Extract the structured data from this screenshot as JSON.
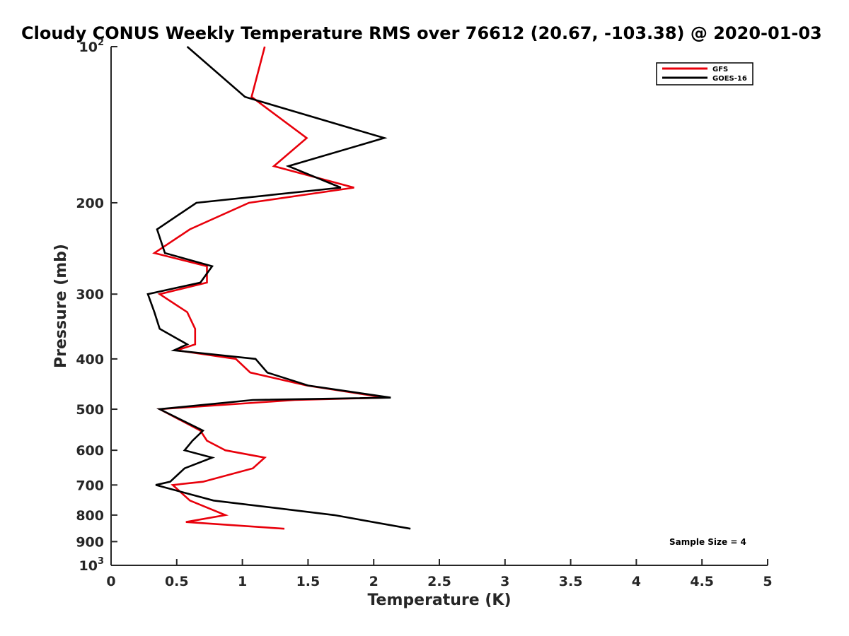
{
  "chart_data": {
    "type": "line",
    "title": "Cloudy CONUS Weekly Temperature RMS over 76612 (20.67, -103.38) @ 2020-01-03",
    "xlabel": "Temperature (K)",
    "ylabel": "Pressure (mb)",
    "xlim": [
      0,
      5
    ],
    "ylim": [
      100,
      1000
    ],
    "yscale": "log",
    "y_reversed": true,
    "x_ticks": [
      0,
      0.5,
      1,
      1.5,
      2,
      2.5,
      3,
      3.5,
      4,
      4.5,
      5
    ],
    "x_tick_labels": [
      "0",
      "0.5",
      "1",
      "1.5",
      "2",
      "2.5",
      "3",
      "3.5",
      "4",
      "4.5",
      "5"
    ],
    "y_ticks": [
      100,
      200,
      300,
      400,
      500,
      600,
      700,
      800,
      900,
      1000
    ],
    "y_tick_labels": [
      {
        "base": "10",
        "exp": "2"
      },
      {
        "base": "200",
        "exp": ""
      },
      {
        "base": "300",
        "exp": ""
      },
      {
        "base": "400",
        "exp": ""
      },
      {
        "base": "500",
        "exp": ""
      },
      {
        "base": "600",
        "exp": ""
      },
      {
        "base": "700",
        "exp": ""
      },
      {
        "base": "800",
        "exp": ""
      },
      {
        "base": "900",
        "exp": ""
      },
      {
        "base": "10",
        "exp": "3"
      }
    ],
    "legend_position": "top-right",
    "annotation": "Sample Size = 4",
    "series": [
      {
        "name": "GFS",
        "color": "#e8000b",
        "points": [
          [
            1.17,
            100
          ],
          [
            1.07,
            125
          ],
          [
            1.49,
            150
          ],
          [
            1.24,
            170
          ],
          [
            1.85,
            187
          ],
          [
            1.05,
            200
          ],
          [
            0.6,
            225
          ],
          [
            0.33,
            250
          ],
          [
            0.73,
            265
          ],
          [
            0.73,
            285
          ],
          [
            0.37,
            300
          ],
          [
            0.58,
            325
          ],
          [
            0.64,
            350
          ],
          [
            0.64,
            375
          ],
          [
            0.5,
            385
          ],
          [
            0.95,
            400
          ],
          [
            1.06,
            425
          ],
          [
            1.49,
            450
          ],
          [
            2.09,
            475
          ],
          [
            1.4,
            480
          ],
          [
            0.37,
            500
          ],
          [
            0.68,
            550
          ],
          [
            0.73,
            575
          ],
          [
            0.87,
            600
          ],
          [
            1.17,
            620
          ],
          [
            1.08,
            650
          ],
          [
            0.7,
            690
          ],
          [
            0.47,
            700
          ],
          [
            0.6,
            750
          ],
          [
            0.87,
            800
          ],
          [
            0.57,
            825
          ],
          [
            1.32,
            850
          ]
        ]
      },
      {
        "name": "GOES-16",
        "color": "#000000",
        "points": [
          [
            0.58,
            100
          ],
          [
            1.02,
            125
          ],
          [
            2.08,
            150
          ],
          [
            1.35,
            170
          ],
          [
            1.75,
            187
          ],
          [
            0.65,
            200
          ],
          [
            0.35,
            225
          ],
          [
            0.41,
            250
          ],
          [
            0.77,
            265
          ],
          [
            0.68,
            285
          ],
          [
            0.28,
            300
          ],
          [
            0.33,
            325
          ],
          [
            0.37,
            350
          ],
          [
            0.58,
            375
          ],
          [
            0.48,
            385
          ],
          [
            1.1,
            400
          ],
          [
            1.19,
            425
          ],
          [
            1.5,
            450
          ],
          [
            2.13,
            475
          ],
          [
            1.08,
            480
          ],
          [
            0.37,
            500
          ],
          [
            0.7,
            550
          ],
          [
            0.62,
            575
          ],
          [
            0.56,
            600
          ],
          [
            0.77,
            620
          ],
          [
            0.56,
            650
          ],
          [
            0.45,
            690
          ],
          [
            0.34,
            700
          ],
          [
            0.78,
            750
          ],
          [
            1.7,
            800
          ],
          [
            2.28,
            850
          ]
        ]
      }
    ]
  }
}
